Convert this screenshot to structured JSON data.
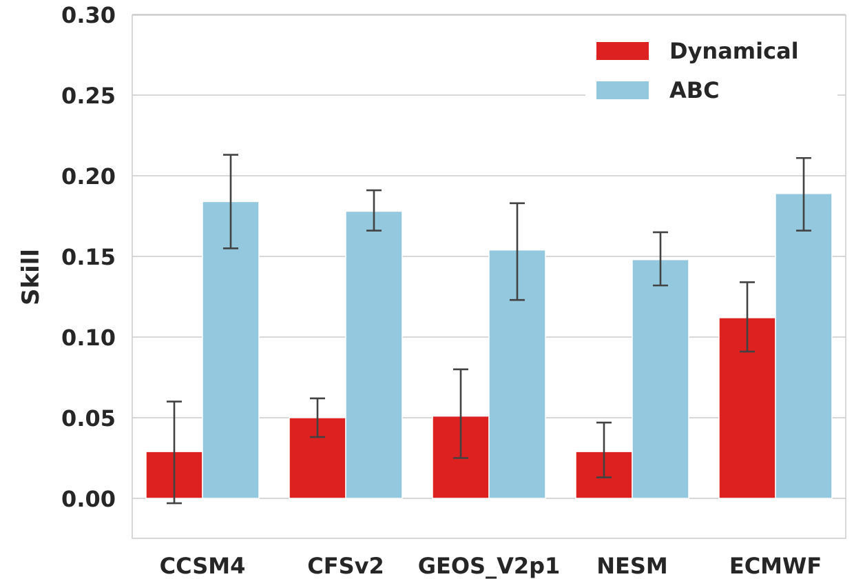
{
  "chart_data": {
    "type": "bar",
    "ylabel": "Skill",
    "xlabel": "",
    "ylim": [
      -0.0245,
      0.3
    ],
    "yticks": [
      0.0,
      0.05,
      0.1,
      0.15,
      0.2,
      0.25,
      0.3
    ],
    "ytick_labels": [
      "0.00",
      "0.05",
      "0.10",
      "0.15",
      "0.20",
      "0.25",
      "0.30"
    ],
    "categories": [
      "CCSM4",
      "CFSv2",
      "GEOS_V2p1",
      "NESM",
      "ECMWF"
    ],
    "grid": "horizontal",
    "legend_position": "top-right",
    "series": [
      {
        "name": "Dynamical",
        "color": "#dd2020",
        "values": [
          0.029,
          0.05,
          0.051,
          0.029,
          0.112
        ],
        "err_low": [
          -0.003,
          0.038,
          0.025,
          0.013,
          0.091
        ],
        "err_high": [
          0.06,
          0.062,
          0.08,
          0.047,
          0.134
        ]
      },
      {
        "name": "ABC",
        "color": "#93c8df",
        "values": [
          0.184,
          0.178,
          0.154,
          0.148,
          0.189
        ],
        "err_low": [
          0.155,
          0.166,
          0.123,
          0.132,
          0.166
        ],
        "err_high": [
          0.213,
          0.191,
          0.183,
          0.165,
          0.211
        ]
      }
    ]
  }
}
